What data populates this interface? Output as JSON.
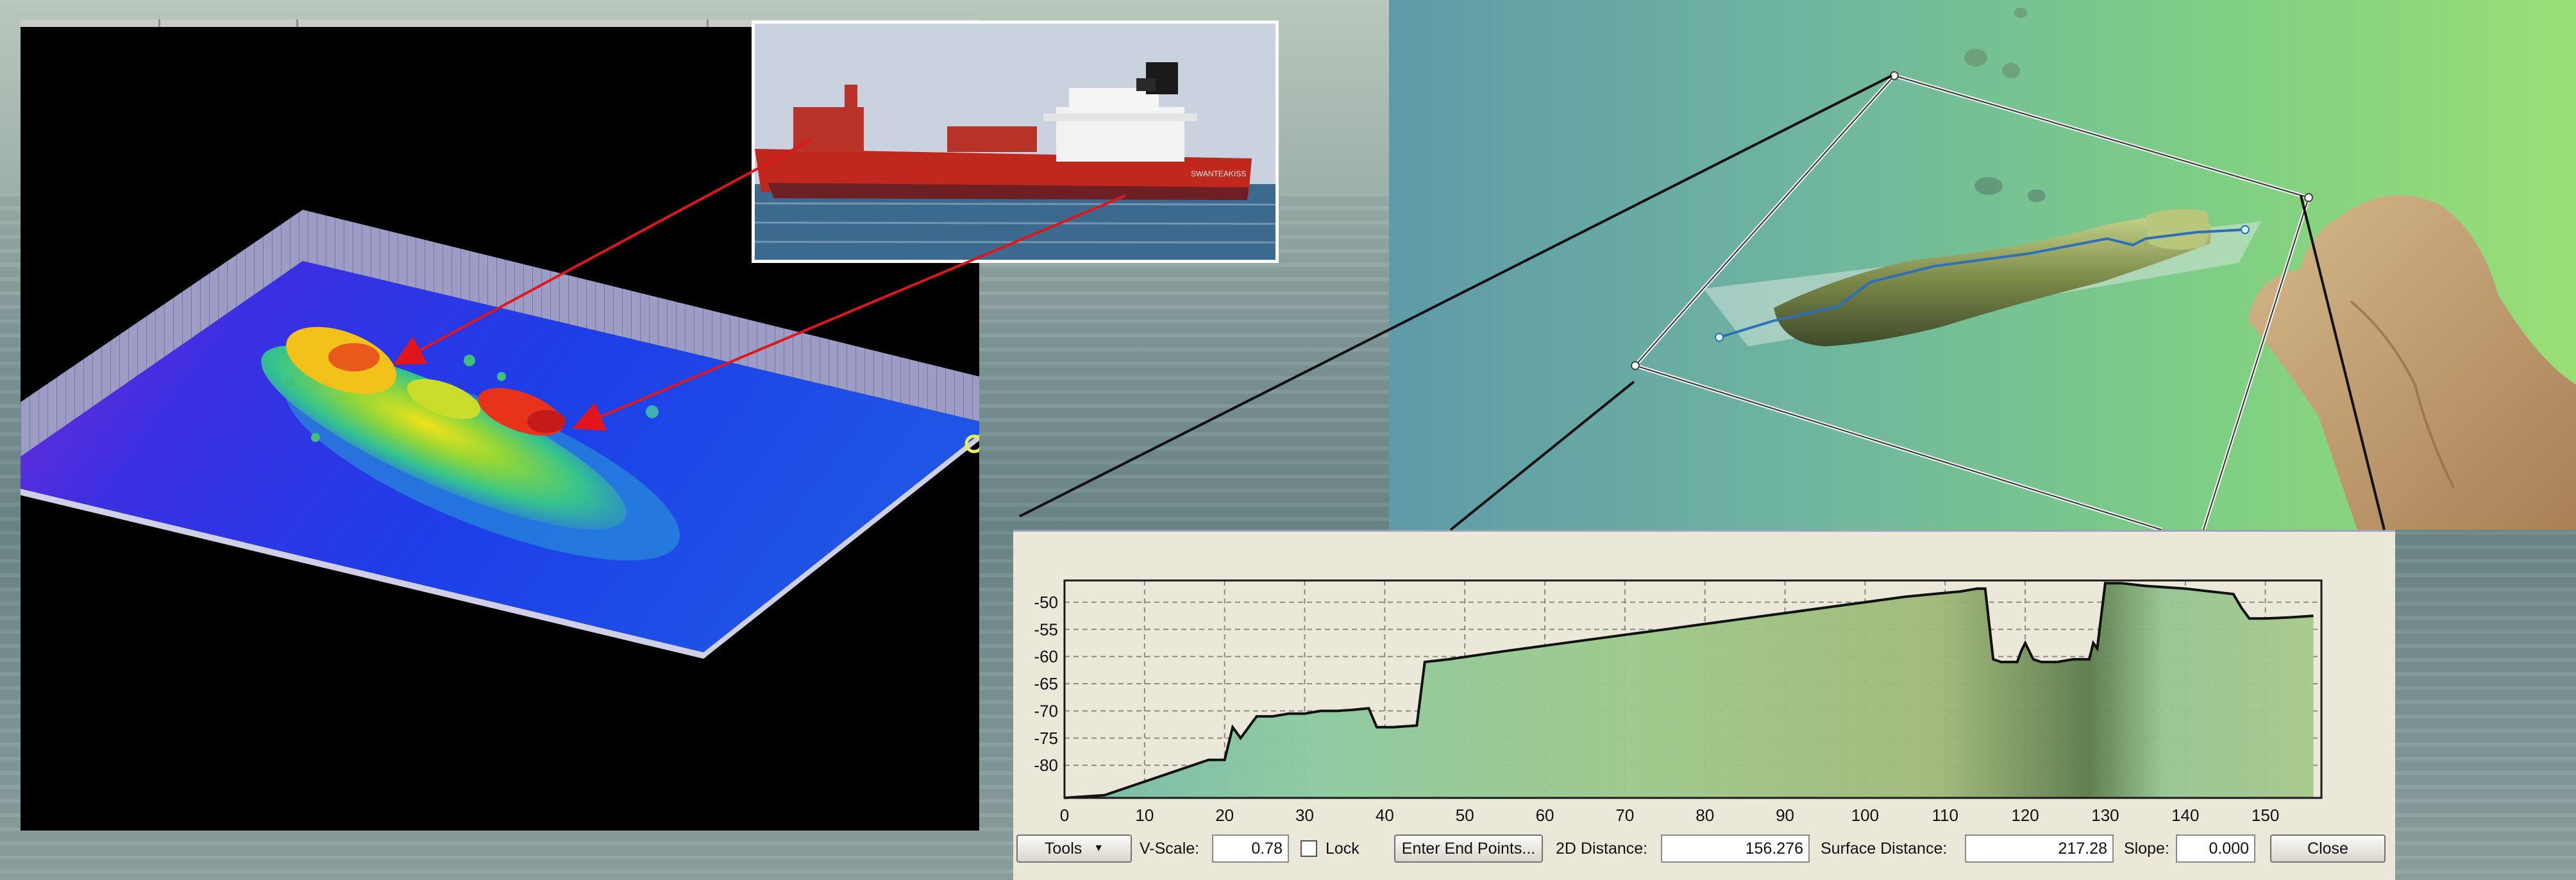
{
  "chart_data": {
    "type": "area",
    "title": "",
    "xlabel": "",
    "ylabel": "",
    "xlim": [
      0,
      157
    ],
    "ylim": [
      -86,
      -46
    ],
    "x_ticks": [
      0,
      10,
      20,
      30,
      40,
      50,
      60,
      70,
      80,
      90,
      100,
      110,
      120,
      130,
      140,
      150
    ],
    "y_ticks": [
      -50,
      -55,
      -60,
      -65,
      -70,
      -75,
      -80
    ],
    "grid": true,
    "series": [
      {
        "x": [
          0,
          5,
          10,
          15,
          18,
          20,
          21,
          22,
          24,
          26,
          28,
          30,
          32,
          34,
          36,
          38,
          39,
          41,
          44,
          45,
          48,
          55,
          65,
          75,
          85,
          95,
          105,
          112,
          114,
          115,
          116,
          117,
          119,
          119.5,
          120,
          121,
          122,
          124,
          126,
          128,
          128.5,
          129,
          130,
          132,
          135,
          140,
          146,
          147,
          148,
          150,
          153,
          156
        ],
        "y": [
          -86,
          -85.5,
          -83,
          -80.5,
          -79,
          -79,
          -73,
          -75,
          -71,
          -71,
          -70.5,
          -70.5,
          -70,
          -70,
          -69.8,
          -69.5,
          -73,
          -73,
          -72.7,
          -61,
          -60.5,
          -59,
          -57,
          -55,
          -53,
          -51,
          -49,
          -48,
          -47.5,
          -47.5,
          -60.5,
          -61,
          -61,
          -59,
          -57.5,
          -60.5,
          -61,
          -61,
          -60.5,
          -60.5,
          -57.5,
          -58.5,
          -46.5,
          -46.5,
          -47,
          -47.5,
          -48.5,
          -51,
          -53,
          -53,
          -52.8,
          -52.5
        ]
      }
    ]
  },
  "toolbar": {
    "tools_label": "Tools",
    "vscale_label": "V-Scale:",
    "vscale_value": "0.78",
    "lock_label": "Lock",
    "enter_points_label": "Enter End Points...",
    "distance2d_label": "2D Distance:",
    "distance2d_value": "156.276",
    "surface_label": "Surface Distance:",
    "surface_value": "217.28",
    "slope_label": "Slope:",
    "slope_value": "0.000",
    "close_label": "Close"
  },
  "photo": {
    "hull_text": "SWANTEAKISS"
  },
  "colors": {
    "panel_bg": "#ebe8da",
    "profile_fill": "#9cc58a",
    "profile_line": "#111111",
    "arrow_red": "#e0161c"
  }
}
